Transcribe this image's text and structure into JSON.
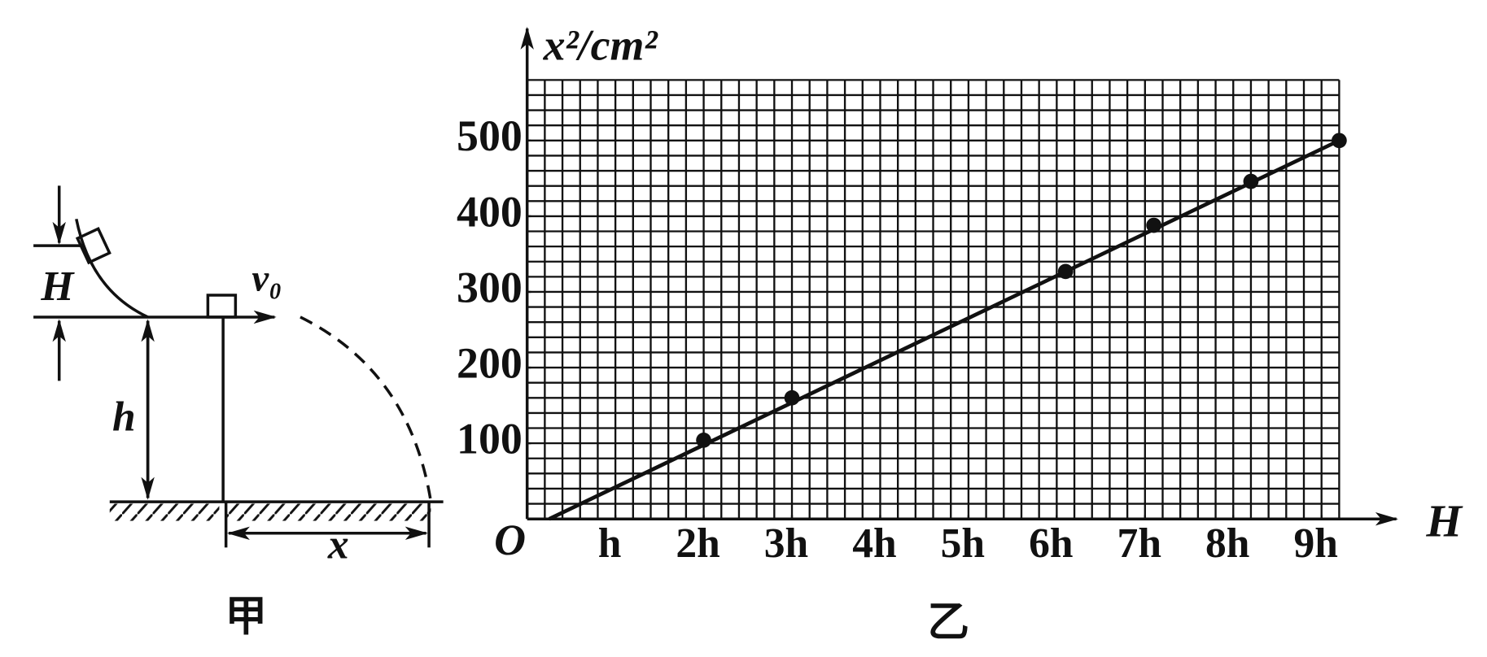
{
  "diagram": {
    "labels": {
      "H": "H",
      "h": "h",
      "v0": "v₀",
      "x": "x"
    },
    "caption": "甲"
  },
  "chart_data": {
    "type": "scatter",
    "caption": "乙",
    "x_label": "H",
    "y_label": "x²/cm²",
    "origin_label": "O",
    "xlim": [
      0,
      9.2
    ],
    "ylim": [
      0,
      580
    ],
    "xticks": [
      {
        "value": 1,
        "label": "h"
      },
      {
        "value": 2,
        "label": "2h"
      },
      {
        "value": 3,
        "label": "3h"
      },
      {
        "value": 4,
        "label": "4h"
      },
      {
        "value": 5,
        "label": "5h"
      },
      {
        "value": 6,
        "label": "6h"
      },
      {
        "value": 7,
        "label": "7h"
      },
      {
        "value": 8,
        "label": "8h"
      },
      {
        "value": 9,
        "label": "9h"
      }
    ],
    "yticks": [
      100,
      200,
      300,
      400,
      500
    ],
    "minor_grid": {
      "x_step": 0.2,
      "y_step": 20
    },
    "color": "#111111",
    "series": [
      {
        "x": [
          2.0,
          3.0,
          6.1,
          7.1,
          8.2,
          9.2
        ],
        "values": [
          104,
          160,
          327,
          388,
          446,
          500
        ]
      }
    ],
    "fit_line": {
      "x": [
        0.25,
        9.2
      ],
      "values": [
        0,
        500
      ]
    }
  }
}
